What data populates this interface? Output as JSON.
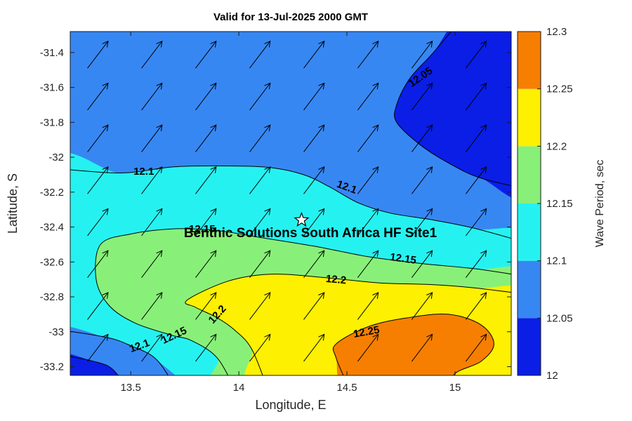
{
  "chart_data": {
    "type": "filled_contour_with_quiver",
    "title": "Valid for 13-Jul-2025 2000 GMT",
    "xlabel": "Longitude, E",
    "ylabel": "Latitude, S",
    "xlim": [
      13.22,
      15.26
    ],
    "ylim": [
      -33.25,
      -31.28
    ],
    "xtick_values": [
      13.5,
      14,
      14.5,
      15
    ],
    "xtick_labels": [
      "13.5",
      "14",
      "14.5",
      "15"
    ],
    "ytick_values": [
      -31.4,
      -31.6,
      -31.8,
      -32,
      -32.2,
      -32.4,
      -32.6,
      -32.8,
      -33,
      -33.2
    ],
    "ytick_labels": [
      "-31.4",
      "-31.6",
      "-31.8",
      "-32",
      "-32.2",
      "-32.4",
      "-32.6",
      "-32.8",
      "-33",
      "-33.2"
    ],
    "grid": false,
    "axis_color": "#1a1a1a",
    "contour_line_color": "#000000",
    "base_band_color": "#3787f3",
    "colorbar": {
      "title": "Wave Period, sec",
      "tick_labels": [
        "12",
        "12.05",
        "12.1",
        "12.15",
        "12.2",
        "12.25",
        "12.3"
      ],
      "bands": [
        {
          "from": 12.0,
          "to": 12.05,
          "color": "#0a1ee6"
        },
        {
          "from": 12.05,
          "to": 12.1,
          "color": "#3787f3"
        },
        {
          "from": 12.1,
          "to": 12.15,
          "color": "#25f2f0"
        },
        {
          "from": 12.15,
          "to": 12.2,
          "color": "#88f078"
        },
        {
          "from": 12.2,
          "to": 12.25,
          "color": "#fdf000"
        },
        {
          "from": 12.25,
          "to": 12.3,
          "color": "#f67f02"
        }
      ]
    },
    "regions": [
      {
        "name": "12.10-12.15",
        "color": "#25f2f0",
        "points": [
          [
            13.12,
            -32.06
          ],
          [
            13.45,
            -32.09
          ],
          [
            13.7,
            -32.055
          ],
          [
            13.95,
            -32.05
          ],
          [
            14.15,
            -32.06
          ],
          [
            14.3,
            -32.1
          ],
          [
            14.42,
            -32.17
          ],
          [
            14.55,
            -32.26
          ],
          [
            14.7,
            -32.32
          ],
          [
            14.9,
            -32.36
          ],
          [
            15.1,
            -32.41
          ],
          [
            15.36,
            -32.5
          ],
          [
            15.36,
            -33.35
          ],
          [
            13.12,
            -33.35
          ]
        ]
      },
      {
        "name": "12.15-12.20",
        "color": "#88f078",
        "points": [
          [
            13.36,
            -32.5
          ],
          [
            13.5,
            -32.44
          ],
          [
            13.7,
            -32.41
          ],
          [
            13.9,
            -32.42
          ],
          [
            14.1,
            -32.46
          ],
          [
            14.35,
            -32.51
          ],
          [
            14.6,
            -32.57
          ],
          [
            14.85,
            -32.61
          ],
          [
            15.1,
            -32.64
          ],
          [
            15.36,
            -32.69
          ],
          [
            15.36,
            -33.35
          ],
          [
            13.99,
            -33.35
          ],
          [
            13.9,
            -33.15
          ],
          [
            13.78,
            -33.05
          ],
          [
            13.69,
            -33.02
          ],
          [
            13.52,
            -32.95
          ],
          [
            13.4,
            -32.85
          ],
          [
            13.34,
            -32.7
          ]
        ]
      },
      {
        "name": "12.20-12.25",
        "color": "#fdf000",
        "points": [
          [
            13.76,
            -32.82
          ],
          [
            13.95,
            -32.71
          ],
          [
            14.15,
            -32.67
          ],
          [
            14.4,
            -32.69
          ],
          [
            14.65,
            -32.72
          ],
          [
            14.9,
            -32.73
          ],
          [
            15.1,
            -32.75
          ],
          [
            15.36,
            -32.79
          ],
          [
            15.36,
            -33.35
          ],
          [
            14.14,
            -33.35
          ],
          [
            14.06,
            -33.1
          ],
          [
            13.98,
            -32.99
          ],
          [
            13.9,
            -32.92
          ],
          [
            13.8,
            -32.86
          ]
        ]
      },
      {
        "name": "12.25-12.30",
        "color": "#f67f02",
        "points": [
          [
            14.45,
            -33.07
          ],
          [
            14.6,
            -32.97
          ],
          [
            14.78,
            -32.92
          ],
          [
            14.97,
            -32.9
          ],
          [
            15.12,
            -32.96
          ],
          [
            15.18,
            -33.07
          ],
          [
            15.12,
            -33.17
          ],
          [
            15.0,
            -33.24
          ],
          [
            14.97,
            -33.35
          ],
          [
            14.52,
            -33.35
          ],
          [
            14.45,
            -33.15
          ]
        ]
      },
      {
        "name": "12.05-12.10-southwest",
        "color": "#3787f3",
        "points": [
          [
            13.12,
            -32.98
          ],
          [
            13.38,
            -33.03
          ],
          [
            13.5,
            -33.08
          ],
          [
            13.62,
            -33.16
          ],
          [
            13.72,
            -33.35
          ],
          [
            13.12,
            -33.35
          ]
        ]
      },
      {
        "name": "12.00-12.05-southwest",
        "color": "#0a1ee6",
        "points": [
          [
            13.12,
            -33.12
          ],
          [
            13.33,
            -33.17
          ],
          [
            13.42,
            -33.22
          ],
          [
            13.48,
            -33.35
          ],
          [
            13.12,
            -33.35
          ]
        ]
      },
      {
        "name": "12.00-12.05-northeast",
        "color": "#0a1ee6",
        "points": [
          [
            15.05,
            -31.18
          ],
          [
            14.9,
            -31.4
          ],
          [
            14.79,
            -31.55
          ],
          [
            14.73,
            -31.7
          ],
          [
            14.73,
            -31.8
          ],
          [
            14.84,
            -31.93
          ],
          [
            14.98,
            -32.04
          ],
          [
            15.12,
            -32.12
          ],
          [
            15.36,
            -32.19
          ],
          [
            15.36,
            -31.18
          ]
        ]
      }
    ],
    "contour_lines": [
      {
        "level": "12.1-north",
        "points": [
          [
            13.12,
            -32.06
          ],
          [
            13.45,
            -32.09
          ],
          [
            13.7,
            -32.055
          ],
          [
            13.95,
            -32.05
          ],
          [
            14.15,
            -32.06
          ],
          [
            14.3,
            -32.1
          ],
          [
            14.42,
            -32.17
          ],
          [
            14.55,
            -32.26
          ],
          [
            14.7,
            -32.32
          ],
          [
            14.9,
            -32.36
          ],
          [
            15.1,
            -32.41
          ],
          [
            15.36,
            -32.5
          ]
        ]
      },
      {
        "level": "12.05-northeast",
        "points": [
          [
            15.05,
            -31.18
          ],
          [
            14.9,
            -31.4
          ],
          [
            14.79,
            -31.55
          ],
          [
            14.73,
            -31.7
          ],
          [
            14.73,
            -31.8
          ],
          [
            14.84,
            -31.93
          ],
          [
            14.98,
            -32.04
          ],
          [
            15.12,
            -32.12
          ],
          [
            15.36,
            -32.19
          ]
        ]
      },
      {
        "level": "12.15",
        "points": [
          [
            13.99,
            -33.35
          ],
          [
            13.9,
            -33.15
          ],
          [
            13.78,
            -33.05
          ],
          [
            13.69,
            -33.02
          ],
          [
            13.52,
            -32.95
          ],
          [
            13.4,
            -32.85
          ],
          [
            13.34,
            -32.7
          ],
          [
            13.36,
            -32.5
          ],
          [
            13.5,
            -32.44
          ],
          [
            13.7,
            -32.41
          ],
          [
            13.9,
            -32.42
          ],
          [
            14.1,
            -32.46
          ],
          [
            14.35,
            -32.51
          ],
          [
            14.6,
            -32.57
          ],
          [
            14.85,
            -32.61
          ],
          [
            15.1,
            -32.64
          ],
          [
            15.36,
            -32.69
          ]
        ]
      },
      {
        "level": "12.2",
        "points": [
          [
            14.14,
            -33.35
          ],
          [
            14.06,
            -33.1
          ],
          [
            13.98,
            -32.99
          ],
          [
            13.9,
            -32.92
          ],
          [
            13.8,
            -32.86
          ],
          [
            13.76,
            -32.82
          ],
          [
            13.95,
            -32.71
          ],
          [
            14.15,
            -32.67
          ],
          [
            14.4,
            -32.69
          ],
          [
            14.65,
            -32.72
          ],
          [
            14.9,
            -32.73
          ],
          [
            15.1,
            -32.75
          ],
          [
            15.36,
            -32.79
          ]
        ]
      },
      {
        "level": "12.25",
        "points": [
          [
            14.52,
            -33.35
          ],
          [
            14.45,
            -33.15
          ],
          [
            14.45,
            -33.07
          ],
          [
            14.6,
            -32.97
          ],
          [
            14.78,
            -32.92
          ],
          [
            14.97,
            -32.9
          ],
          [
            15.12,
            -32.96
          ],
          [
            15.18,
            -33.07
          ],
          [
            15.12,
            -33.17
          ],
          [
            15.0,
            -33.24
          ],
          [
            14.97,
            -33.35
          ]
        ]
      },
      {
        "level": "12.1-southwest",
        "points": [
          [
            13.12,
            -32.98
          ],
          [
            13.38,
            -33.03
          ],
          [
            13.5,
            -33.08
          ],
          [
            13.62,
            -33.16
          ],
          [
            13.72,
            -33.35
          ]
        ]
      },
      {
        "level": "12.05-southwest",
        "points": [
          [
            13.12,
            -33.12
          ],
          [
            13.33,
            -33.17
          ],
          [
            13.42,
            -33.22
          ],
          [
            13.48,
            -33.35
          ]
        ]
      }
    ],
    "contour_labels": [
      {
        "text": "12.05",
        "x": 14.84,
        "y": -31.54,
        "rot": -35
      },
      {
        "text": "12.1",
        "x": 13.56,
        "y": -32.08,
        "rot": 0
      },
      {
        "text": "12.1",
        "x": 14.5,
        "y": -32.17,
        "rot": 20
      },
      {
        "text": "12.15",
        "x": 13.83,
        "y": -32.41,
        "rot": 0
      },
      {
        "text": "12.15",
        "x": 14.76,
        "y": -32.58,
        "rot": 8
      },
      {
        "text": "12.2",
        "x": 14.45,
        "y": -32.7,
        "rot": 5
      },
      {
        "text": "12.2",
        "x": 13.9,
        "y": -32.9,
        "rot": -48
      },
      {
        "text": "12.25",
        "x": 14.59,
        "y": -33.0,
        "rot": -10
      },
      {
        "text": "12.15",
        "x": 13.7,
        "y": -33.02,
        "rot": -25
      },
      {
        "text": "12.1",
        "x": 13.54,
        "y": -33.08,
        "rot": -20
      }
    ],
    "quiver": {
      "x0": 13.3,
      "dx": 0.25,
      "cols": 8,
      "y0": -31.49,
      "dy": 0.24,
      "rows": 8,
      "u": 0.095,
      "v": 0.155,
      "color": "#000000"
    },
    "marker": {
      "type": "pentagram-star",
      "lon": 14.29,
      "lat": -32.36,
      "fill": "#ffffff",
      "edge": "#000000"
    },
    "annotation": {
      "text": "Benthic Solutions South Africa HF Site1"
    }
  }
}
